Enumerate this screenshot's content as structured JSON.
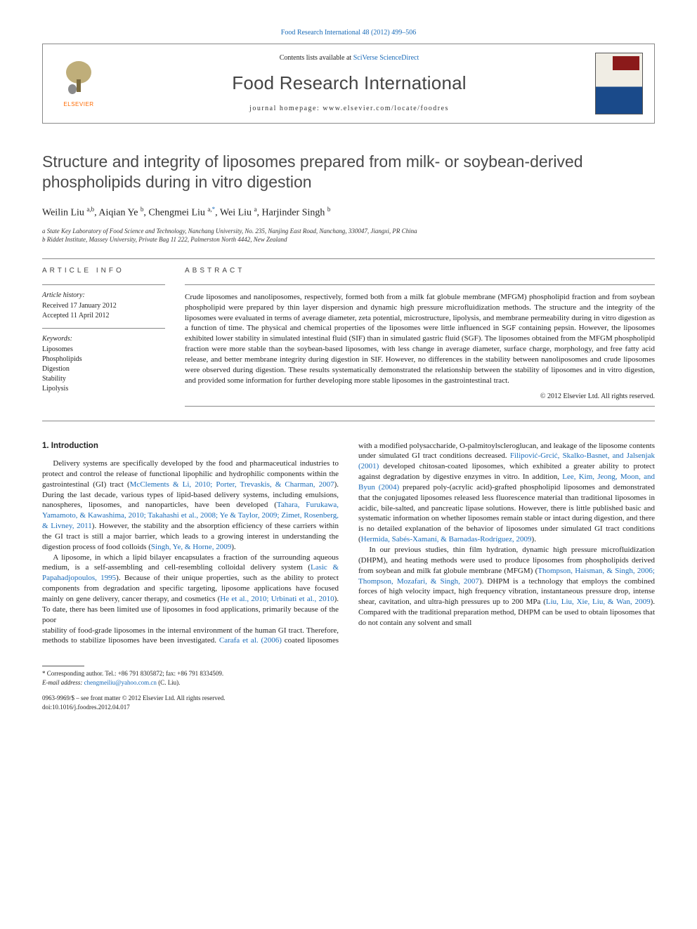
{
  "journal_link_text": "Food Research International 48 (2012) 499–506",
  "header": {
    "contents_list_prefix": "Contents lists available at ",
    "contents_list_link": "SciVerse ScienceDirect",
    "journal_name": "Food Research International",
    "homepage_prefix": "journal homepage: ",
    "homepage_url": "www.elsevier.com/locate/foodres",
    "elsevier_label": "ELSEVIER"
  },
  "title": "Structure and integrity of liposomes prepared from milk- or soybean-derived phospholipids during in vitro digestion",
  "authors_html": "Weilin Liu <sup>a,b</sup>, Aiqian Ye <sup>b</sup>, Chengmei Liu <sup>a,</sup><sup class=\"corr\">*</sup>, Wei Liu <sup>a</sup>, Harjinder Singh <sup>b</sup>",
  "affiliations": {
    "a": "a State Key Laboratory of Food Science and Technology, Nanchang University, No. 235, Nanjing East Road, Nanchang, 330047, Jiangxi, PR China",
    "b": "b Riddet Institute, Massey University, Private Bag 11 222, Palmerston North 4442, New Zealand"
  },
  "article_info": {
    "heading": "ARTICLE INFO",
    "history_label": "Article history:",
    "received": "Received 17 January 2012",
    "accepted": "Accepted 11 April 2012",
    "keywords_label": "Keywords:",
    "keywords": [
      "Liposomes",
      "Phospholipids",
      "Digestion",
      "Stability",
      "Lipolysis"
    ]
  },
  "abstract": {
    "heading": "ABSTRACT",
    "text": "Crude liposomes and nanoliposomes, respectively, formed both from a milk fat globule membrane (MFGM) phospholipid fraction and from soybean phospholipid were prepared by thin layer dispersion and dynamic high pressure microfluidization methods. The structure and the integrity of the liposomes were evaluated in terms of average diameter, zeta potential, microstructure, lipolysis, and membrane permeability during in vitro digestion as a function of time. The physical and chemical properties of the liposomes were little influenced in SGF containing pepsin. However, the liposomes exhibited lower stability in simulated intestinal fluid (SIF) than in simulated gastric fluid (SGF). The liposomes obtained from the MFGM phospholipid fraction were more stable than the soybean-based liposomes, with less change in average diameter, surface charge, morphology, and free fatty acid release, and better membrane integrity during digestion in SIF. However, no differences in the stability between nanoliposomes and crude liposomes were observed during digestion. These results systematically demonstrated the relationship between the stability of liposomes and in vitro digestion, and provided some information for further developing more stable liposomes in the gastrointestinal tract.",
    "copyright": "© 2012 Elsevier Ltd. All rights reserved."
  },
  "body": {
    "section1_title": "1. Introduction",
    "p1_pre": "Delivery systems are specifically developed by the food and pharmaceutical industries to protect and control the release of functional lipophilic and hydrophilic components within the gastrointestinal (GI) tract (",
    "p1_c1": "McClements & Li, 2010; Porter, Trevaskis, & Charman, 2007",
    "p1_mid1": "). During the last decade, various types of lipid-based delivery systems, including emulsions, nanospheres, liposomes, and nanoparticles, have been developed (",
    "p1_c2": "Tahara, Furukawa, Yamamoto, & Kawashima, 2010; Takahashi et al., 2008; Ye & Taylor, 2009; Zimet, Rosenberg, & Livney, 2011",
    "p1_mid2": "). However, the stability and the absorption efficiency of these carriers within the GI tract is still a major barrier, which leads to a growing interest in understanding the digestion process of food colloids (",
    "p1_c3": "Singh, Ye, & Horne, 2009",
    "p1_post": ").",
    "p2_pre": "A liposome, in which a lipid bilayer encapsulates a fraction of the surrounding aqueous medium, is a self-assembling and cell-resembling colloidal delivery system (",
    "p2_c1": "Lasic & Papahadjopoulos, 1995",
    "p2_mid1": "). Because of their unique properties, such as the ability to protect components from degradation and specific targeting, liposome applications have focused mainly on gene delivery, cancer therapy, and cosmetics (",
    "p2_c2": "He et al., 2010; Urbinati et al., 2010",
    "p2_post": "). To date, there has been limited use of liposomes in food applications, primarily because of the poor",
    "p3_pre": "stability of food-grade liposomes in the internal environment of the human GI tract. Therefore, methods to stabilize liposomes have been investigated. ",
    "p3_c1": "Carafa et al. (2006)",
    "p3_mid1": " coated liposomes with a modified polysaccharide, O-palmitoylscleroglucan, and leakage of the liposome contents under simulated GI tract conditions decreased. ",
    "p3_c2": "Filipović-Grcić, Skalko-Basnet, and Jalsenjak (2001)",
    "p3_mid2": " developed chitosan-coated liposomes, which exhibited a greater ability to protect against degradation by digestive enzymes in vitro. In addition, ",
    "p3_c3": "Lee, Kim, Jeong, Moon, and Byun (2004)",
    "p3_mid3": " prepared poly-(acrylic acid)-grafted phospholipid liposomes and demonstrated that the conjugated liposomes released less fluorescence material than traditional liposomes in acidic, bile-salted, and pancreatic lipase solutions. However, there is little published basic and systematic information on whether liposomes remain stable or intact during digestion, and there is no detailed explanation of the behavior of liposomes under simulated GI tract conditions (",
    "p3_c4": "Hermida, Sabés-Xamaní, & Barnadas-Rodríguez, 2009",
    "p3_post": ").",
    "p4_pre": "In our previous studies, thin film hydration, dynamic high pressure microfluidization (DHPM), and heating methods were used to produce liposomes from phospholipids derived from soybean and milk fat globule membrane (MFGM) (",
    "p4_c1": "Thompson, Haisman, & Singh, 2006; Thompson, Mozafari, & Singh, 2007",
    "p4_mid1": "). DHPM is a technology that employs the combined forces of high velocity impact, high frequency vibration, instantaneous pressure drop, intense shear, cavitation, and ultra-high pressures up to 200 MPa (",
    "p4_c2": "Liu, Liu, Xie, Liu, & Wan, 2009",
    "p4_post": "). Compared with the traditional preparation method, DHPM can be used to obtain liposomes that do not contain any solvent and small"
  },
  "footer": {
    "corr_line": "* Corresponding author. Tel.: +86 791 8305872; fax: +86 791 8334509.",
    "email_label": "E-mail address: ",
    "email": "chengmeiliu@yahoo.com.cn",
    "email_suffix": " (C. Liu).",
    "issn_line": "0963-9969/$ – see front matter © 2012 Elsevier Ltd. All rights reserved.",
    "doi_line": "doi:10.1016/j.foodres.2012.04.017"
  },
  "colors": {
    "link": "#1a6bb8",
    "elsevier_orange": "#ff6a00",
    "rule": "#888888",
    "text": "#222222",
    "title_gray": "#4a4a4a"
  }
}
